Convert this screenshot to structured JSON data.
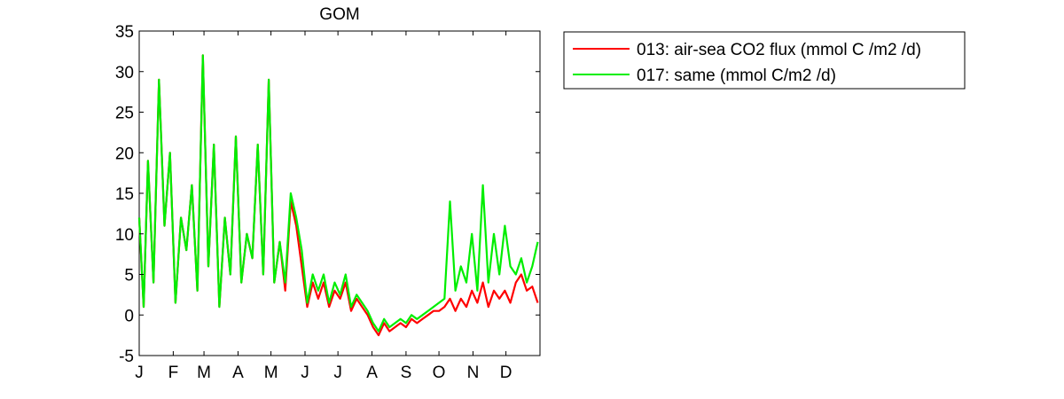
{
  "chart_data": {
    "type": "line",
    "title": "GOM",
    "xlabel": "",
    "ylabel": "",
    "xlim": [
      1,
      366
    ],
    "ylim": [
      -5,
      35
    ],
    "yticks": [
      -5,
      0,
      5,
      10,
      15,
      20,
      25,
      30,
      35
    ],
    "x_tick_labels": [
      "J",
      "F",
      "M",
      "A",
      "M",
      "J",
      "J",
      "A",
      "S",
      "O",
      "N",
      "D"
    ],
    "x_tick_positions": [
      1,
      32,
      60,
      91,
      121,
      152,
      182,
      213,
      244,
      274,
      305,
      335
    ],
    "grid": false,
    "legend_position": "outside-top-right",
    "series": [
      {
        "name": "013: air-sea CO2 flux (mmol C /m2 /d)",
        "color": "#ff0000",
        "x": [
          1,
          5,
          9,
          14,
          19,
          24,
          29,
          34,
          39,
          44,
          49,
          54,
          59,
          64,
          69,
          74,
          79,
          84,
          89,
          94,
          99,
          104,
          109,
          114,
          119,
          124,
          129,
          134,
          139,
          144,
          149,
          154,
          159,
          164,
          169,
          174,
          179,
          184,
          189,
          194,
          199,
          204,
          209,
          214,
          219,
          224,
          229,
          234,
          239,
          244,
          249,
          254,
          259,
          264,
          269,
          274,
          279,
          284,
          289,
          294,
          299,
          304,
          309,
          314,
          319,
          324,
          329,
          334,
          339,
          344,
          349,
          354,
          359,
          364
        ],
        "y": [
          12,
          1,
          19,
          4,
          29,
          11,
          20,
          1.5,
          12,
          8,
          16,
          3,
          32,
          6,
          21,
          1,
          12,
          5,
          22,
          4,
          10,
          7,
          21,
          5,
          29,
          4,
          9,
          3,
          14,
          11,
          6,
          1,
          4,
          2,
          4,
          1,
          3,
          2,
          4,
          0.5,
          2,
          1,
          0,
          -1.5,
          -2.5,
          -1,
          -2,
          -1.5,
          -1,
          -1.5,
          -0.5,
          -1,
          -0.5,
          0,
          0.5,
          0.5,
          1,
          2,
          0.5,
          2,
          1,
          3,
          1.5,
          4,
          1,
          3,
          2,
          3,
          1.5,
          4,
          5,
          3,
          3.5,
          1.5
        ]
      },
      {
        "name": "017: same (mmol C/m2 /d)",
        "color": "#00ee00",
        "x": [
          1,
          5,
          9,
          14,
          19,
          24,
          29,
          34,
          39,
          44,
          49,
          54,
          59,
          64,
          69,
          74,
          79,
          84,
          89,
          94,
          99,
          104,
          109,
          114,
          119,
          124,
          129,
          134,
          139,
          144,
          149,
          154,
          159,
          164,
          169,
          174,
          179,
          184,
          189,
          194,
          199,
          204,
          209,
          214,
          219,
          224,
          229,
          234,
          239,
          244,
          249,
          254,
          259,
          264,
          269,
          274,
          279,
          284,
          289,
          294,
          299,
          304,
          309,
          314,
          319,
          324,
          329,
          334,
          339,
          344,
          349,
          354,
          359,
          364
        ],
        "y": [
          12,
          1,
          19,
          4,
          29,
          11,
          20,
          1.5,
          12,
          8,
          16,
          3,
          32,
          6,
          21,
          1,
          12,
          5,
          22,
          4,
          10,
          7,
          21,
          5,
          29,
          4,
          9,
          4,
          15,
          12,
          8,
          1.5,
          5,
          3,
          5,
          1.5,
          4,
          2.5,
          5,
          1,
          2.5,
          1.5,
          0.5,
          -1,
          -2,
          -0.5,
          -1.5,
          -1,
          -0.5,
          -1,
          0,
          -0.5,
          0,
          0.5,
          1,
          1.5,
          2,
          14,
          3,
          6,
          4,
          10,
          3,
          16,
          4,
          10,
          5,
          11,
          6,
          5,
          7,
          4,
          6,
          9
        ]
      }
    ]
  }
}
